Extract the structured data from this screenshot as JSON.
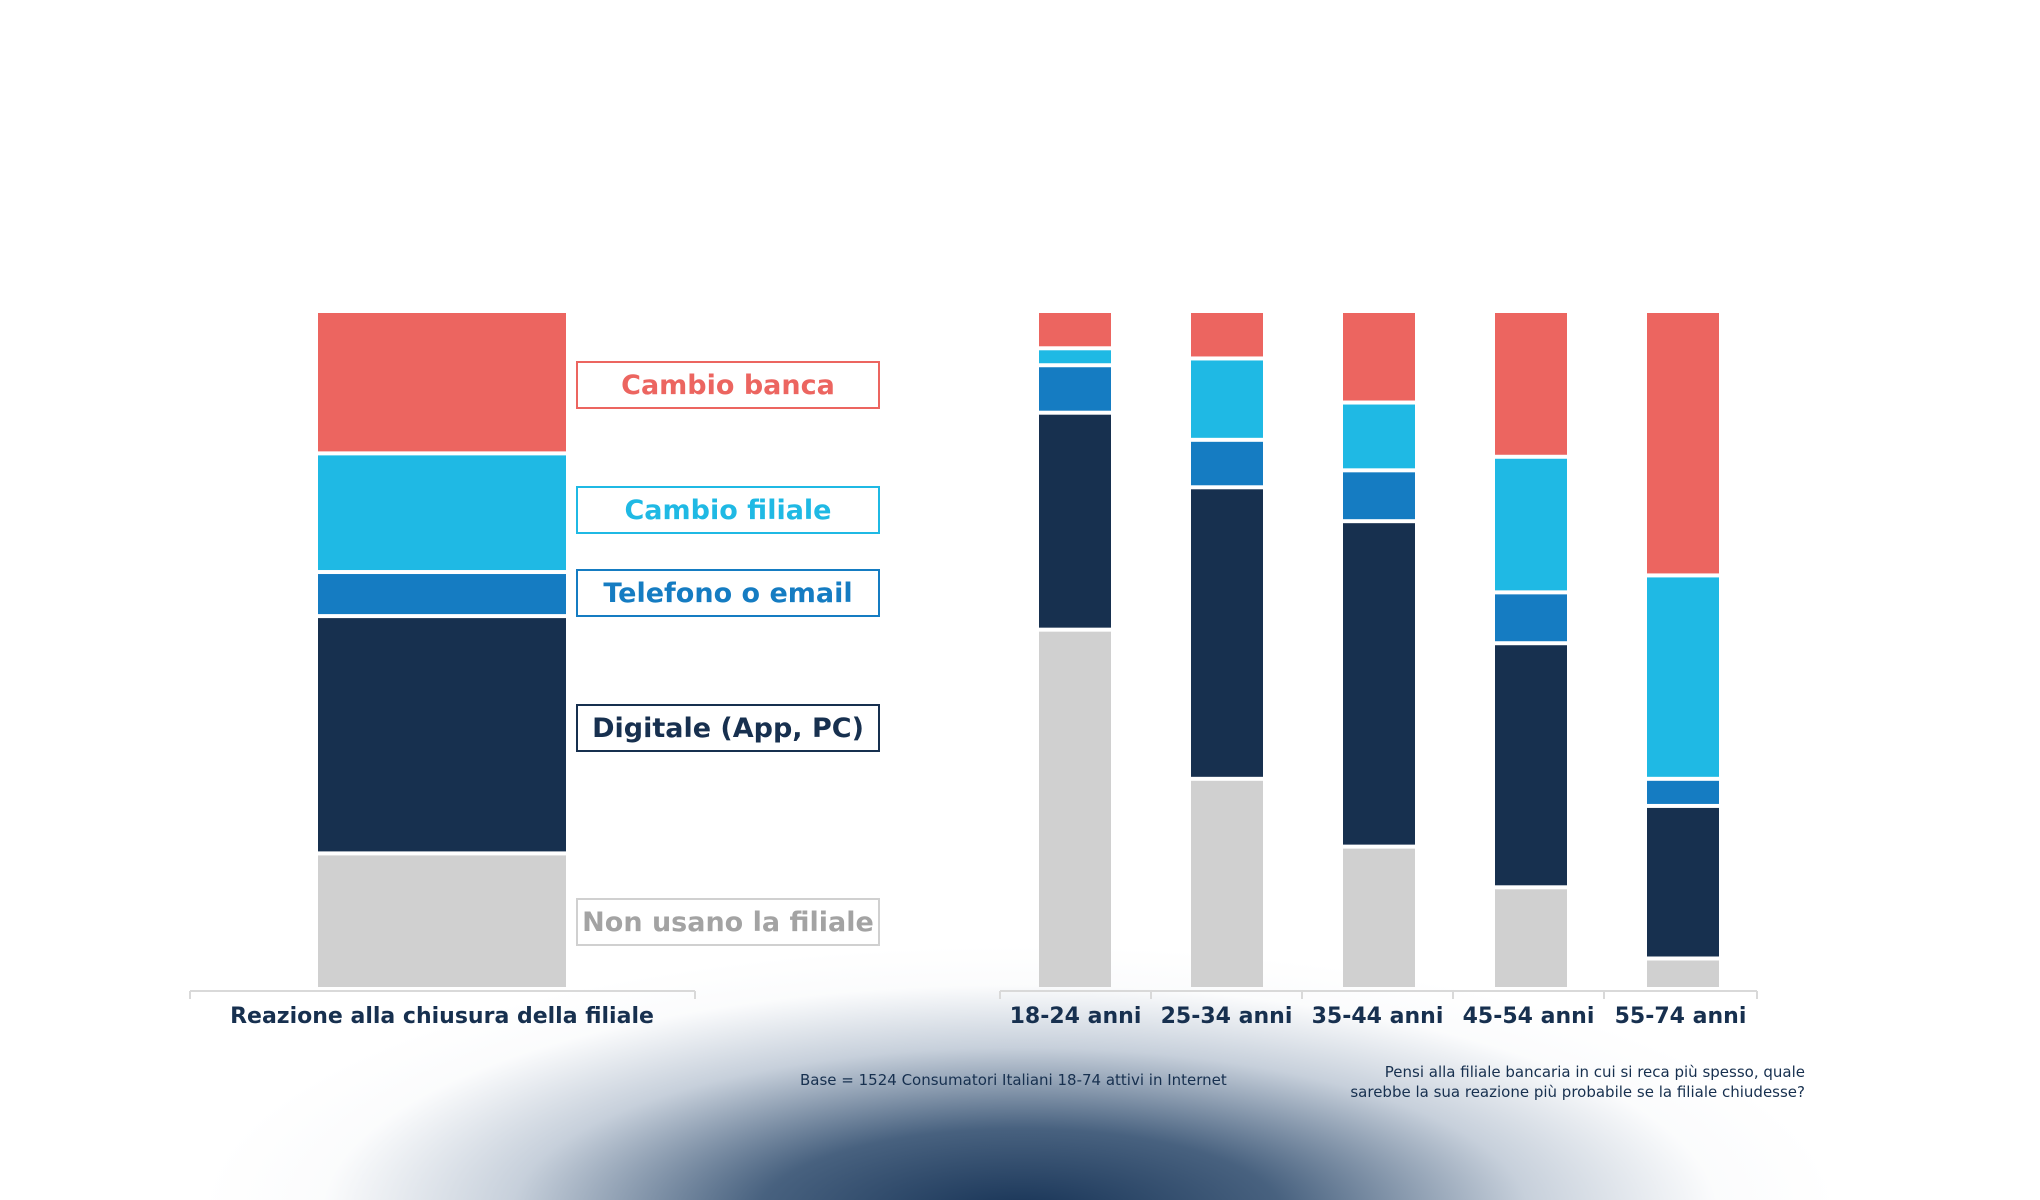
{
  "colors": {
    "cambio_banca": "#ec6560",
    "cambio_filiale": "#1fb9e4",
    "telefono": "#157cc2",
    "digitale": "#17304f",
    "non_usano": "#d0d0d0",
    "legend_grey_text": "#a3a3a3"
  },
  "legend": {
    "cambio_banca": "Cambio banca",
    "cambio_filiale": "Cambio filiale",
    "telefono": "Telefono o email",
    "digitale": "Digitale (App, PC)",
    "non_usano": "Non usano la filiale"
  },
  "notes": {
    "base": "Base = 1524 Consumatori Italiani 18-74 attivi in Internet",
    "question_line1": "Pensi alla filiale bancaria in cui si reca più spesso, quale",
    "question_line2": "sarebbe la sua reazione più probabile se la filiale chiudesse?"
  },
  "chart_data": [
    {
      "type": "bar",
      "stacked": true,
      "normalized": true,
      "categories": [
        "Reazione alla chiusura della filiale"
      ],
      "ylim": [
        0,
        100
      ],
      "series": [
        {
          "name": "Non usano la filiale",
          "key": "non_usano",
          "values": [
            20
          ]
        },
        {
          "name": "Digitale (App, PC)",
          "key": "digitale",
          "values": [
            35
          ]
        },
        {
          "name": "Telefono o email",
          "key": "telefono",
          "values": [
            6.5
          ]
        },
        {
          "name": "Cambio filiale",
          "key": "cambio_filiale",
          "values": [
            17.5
          ]
        },
        {
          "name": "Cambio banca",
          "key": "cambio_banca",
          "values": [
            21
          ]
        }
      ]
    },
    {
      "type": "bar",
      "stacked": true,
      "normalized": true,
      "categories": [
        "18-24 anni",
        "25-34 anni",
        "35-44 anni",
        "45-54 anni",
        "55-74 anni"
      ],
      "ylim": [
        0,
        100
      ],
      "series": [
        {
          "name": "Non usano la filiale",
          "key": "non_usano",
          "values": [
            53,
            31,
            21,
            15,
            4.5
          ]
        },
        {
          "name": "Digitale (App, PC)",
          "key": "digitale",
          "values": [
            32,
            43,
            48,
            36,
            22.5
          ]
        },
        {
          "name": "Telefono o email",
          "key": "telefono",
          "values": [
            7,
            7,
            7.5,
            7.5,
            4
          ]
        },
        {
          "name": "Cambio filiale",
          "key": "cambio_filiale",
          "values": [
            2.5,
            12,
            10,
            20,
            30
          ]
        },
        {
          "name": "Cambio banca",
          "key": "cambio_banca",
          "values": [
            5.5,
            7,
            13.5,
            21.5,
            39
          ]
        }
      ]
    }
  ]
}
